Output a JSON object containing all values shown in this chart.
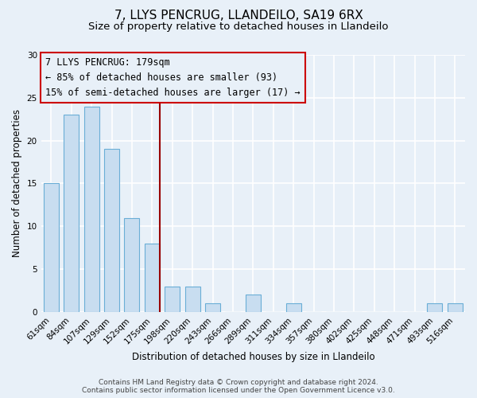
{
  "title": "7, LLYS PENCRUG, LLANDEILO, SA19 6RX",
  "subtitle": "Size of property relative to detached houses in Llandeilo",
  "xlabel": "Distribution of detached houses by size in Llandeilo",
  "ylabel": "Number of detached properties",
  "bar_labels": [
    "61sqm",
    "84sqm",
    "107sqm",
    "129sqm",
    "152sqm",
    "175sqm",
    "198sqm",
    "220sqm",
    "243sqm",
    "266sqm",
    "289sqm",
    "311sqm",
    "334sqm",
    "357sqm",
    "380sqm",
    "402sqm",
    "425sqm",
    "448sqm",
    "471sqm",
    "493sqm",
    "516sqm"
  ],
  "bar_values": [
    15,
    23,
    24,
    19,
    11,
    8,
    3,
    3,
    1,
    0,
    2,
    0,
    1,
    0,
    0,
    0,
    0,
    0,
    0,
    1,
    1
  ],
  "bar_color": "#c8ddf0",
  "bar_edge_color": "#6aaed6",
  "bar_width": 0.75,
  "vline_x_index": 5,
  "vline_color": "#990000",
  "annotation_text_line1": "7 LLYS PENCRUG: 179sqm",
  "annotation_text_line2": "← 85% of detached houses are smaller (93)",
  "annotation_text_line3": "15% of semi-detached houses are larger (17) →",
  "box_edge_color": "#cc0000",
  "ylim": [
    0,
    30
  ],
  "yticks": [
    0,
    5,
    10,
    15,
    20,
    25,
    30
  ],
  "footer_line1": "Contains HM Land Registry data © Crown copyright and database right 2024.",
  "footer_line2": "Contains public sector information licensed under the Open Government Licence v3.0.",
  "bg_color": "#e8f0f8",
  "grid_color": "#ffffff",
  "title_fontsize": 11,
  "subtitle_fontsize": 9.5,
  "axis_label_fontsize": 8.5,
  "tick_fontsize": 7.5,
  "annotation_fontsize": 8.5,
  "footer_fontsize": 6.5
}
